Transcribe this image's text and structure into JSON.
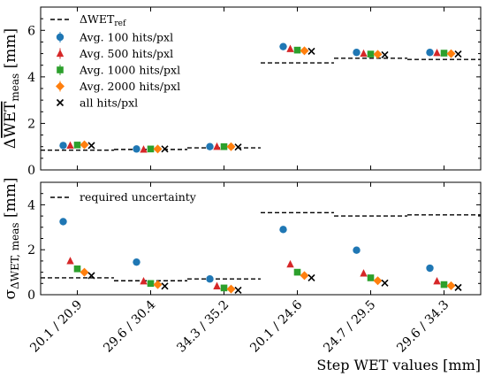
{
  "chart_data": [
    {
      "type": "scatter",
      "panel": "top",
      "ylabel_parts": {
        "prefix": "Δ",
        "main": "WET",
        "sub": "meas",
        "unit": "[mm]"
      },
      "ylim": [
        0,
        7
      ],
      "yticks": [
        0,
        2,
        4,
        6
      ],
      "categories": [
        "20.1 / 20.9",
        "29.6 / 30.4",
        "34.3 / 35.2",
        "20.1 / 24.6",
        "24.7 / 29.5",
        "29.6 / 34.3"
      ],
      "reference_label": {
        "main": "ΔWET",
        "sub": "ref"
      },
      "reference": [
        0.85,
        0.88,
        0.95,
        4.6,
        4.8,
        4.75
      ],
      "legend_position": "top-left",
      "series": [
        {
          "name": "Avg. 100 hits/pxl",
          "marker": "circle",
          "color": "#1f77b4",
          "values": [
            1.05,
            0.9,
            1.0,
            5.3,
            5.05,
            5.05
          ]
        },
        {
          "name": "Avg. 500 hits/pxl",
          "marker": "triangle",
          "color": "#d62728",
          "values": [
            1.05,
            0.88,
            1.0,
            5.2,
            5.0,
            5.03
          ]
        },
        {
          "name": "Avg. 1000 hits/pxl",
          "marker": "square",
          "color": "#2ca02c",
          "values": [
            1.07,
            0.9,
            1.0,
            5.15,
            4.98,
            5.02
          ]
        },
        {
          "name": "Avg. 2000 hits/pxl",
          "marker": "diamond",
          "color": "#ff7f0e",
          "values": [
            1.08,
            0.9,
            1.0,
            5.12,
            4.97,
            5.0
          ]
        },
        {
          "name": "all hits/pxl",
          "marker": "x",
          "color": "#000000",
          "values": [
            1.05,
            0.9,
            0.98,
            5.1,
            4.95,
            4.98
          ]
        }
      ]
    },
    {
      "type": "scatter",
      "panel": "bottom",
      "ylabel_parts": {
        "prefix": "σ",
        "main": "ΔWET, meas",
        "unit": "[mm]"
      },
      "ylim": [
        0,
        5
      ],
      "yticks": [
        0,
        2,
        4
      ],
      "xlabel": "Step WET values [mm]",
      "categories": [
        "20.1 / 20.9",
        "29.6 / 30.4",
        "34.3 / 35.2",
        "20.1 / 24.6",
        "24.7 / 29.5",
        "29.6 / 34.3"
      ],
      "reference_label": "required uncertainty",
      "reference": [
        0.75,
        0.62,
        0.7,
        3.65,
        3.5,
        3.55
      ],
      "legend_position": "top-left",
      "series": [
        {
          "marker": "circle",
          "color": "#1f77b4",
          "values": [
            3.25,
            1.45,
            0.7,
            2.9,
            1.98,
            1.18
          ]
        },
        {
          "marker": "triangle",
          "color": "#d62728",
          "values": [
            1.5,
            0.6,
            0.38,
            1.35,
            0.95,
            0.6
          ]
        },
        {
          "marker": "square",
          "color": "#2ca02c",
          "values": [
            1.15,
            0.5,
            0.3,
            1.0,
            0.75,
            0.45
          ]
        },
        {
          "marker": "diamond",
          "color": "#ff7f0e",
          "values": [
            1.0,
            0.45,
            0.25,
            0.85,
            0.62,
            0.4
          ]
        },
        {
          "marker": "x",
          "color": "#000000",
          "values": [
            0.85,
            0.38,
            0.2,
            0.75,
            0.52,
            0.32
          ]
        }
      ]
    }
  ]
}
